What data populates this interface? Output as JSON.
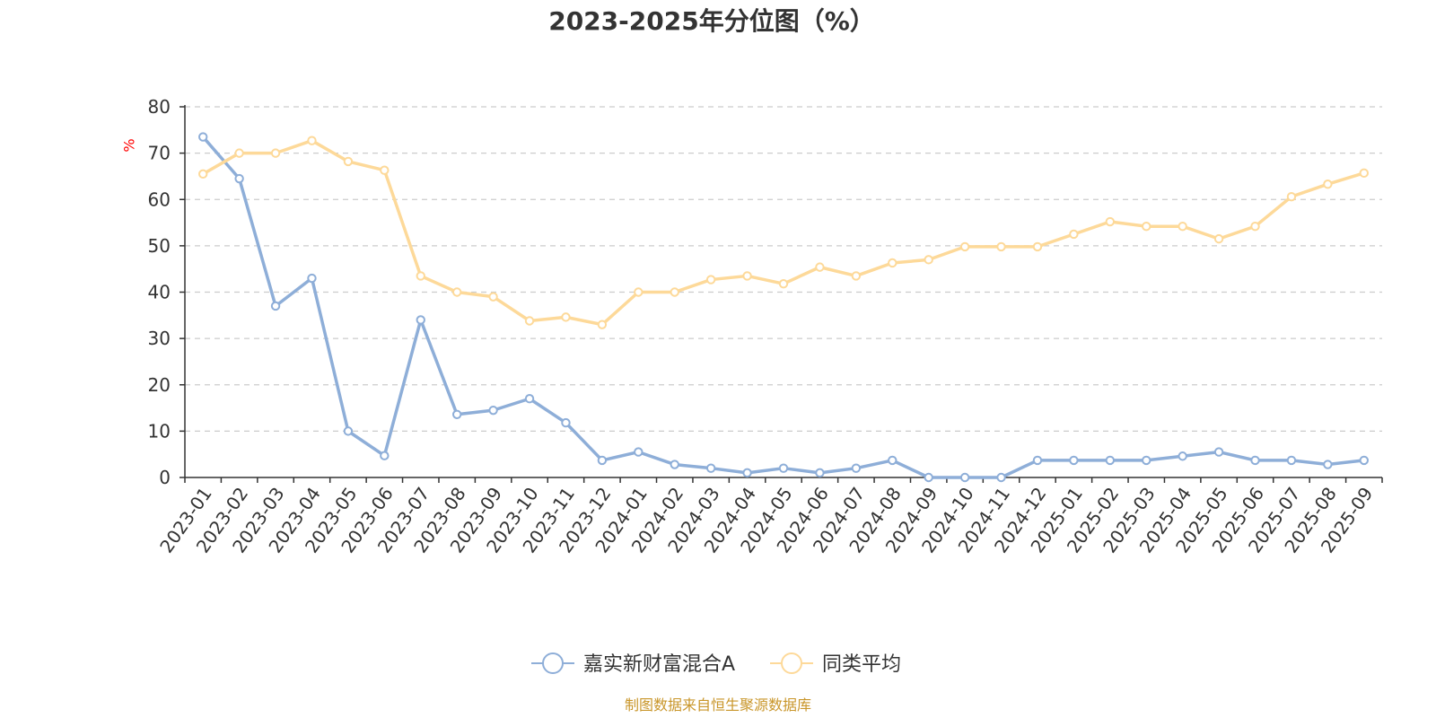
{
  "chart_data": {
    "type": "line",
    "title": "2023-2025年分位图（%）",
    "xlabel": "",
    "ylabel": "%",
    "ylim": [
      0,
      80
    ],
    "yticks": [
      0,
      10,
      20,
      30,
      40,
      50,
      60,
      70,
      80
    ],
    "grid": true,
    "legend_position": "bottom-center",
    "categories": [
      "2023-01",
      "2023-02",
      "2023-03",
      "2023-04",
      "2023-05",
      "2023-06",
      "2023-07",
      "2023-08",
      "2023-09",
      "2023-10",
      "2023-11",
      "2023-12",
      "2024-01",
      "2024-02",
      "2024-03",
      "2024-04",
      "2024-05",
      "2024-06",
      "2024-07",
      "2024-08",
      "2024-09",
      "2024-10",
      "2024-11",
      "2024-12",
      "2025-01",
      "2025-02",
      "2025-03",
      "2025-04",
      "2025-05",
      "2025-06",
      "2025-07",
      "2025-08",
      "2025-09"
    ],
    "series": [
      {
        "name": "嘉实新财富混合A",
        "color": "#8eaed8",
        "values": [
          73.5,
          64.5,
          37,
          43,
          10,
          4.7,
          34,
          13.6,
          14.5,
          17,
          11.8,
          3.7,
          5.5,
          2.8,
          2,
          1,
          2,
          1,
          2,
          3.7,
          0,
          0,
          0,
          3.7,
          3.7,
          3.7,
          3.7,
          4.6,
          5.5,
          3.7,
          3.7,
          2.8,
          3.7
        ]
      },
      {
        "name": "同类平均",
        "color": "#fdd999",
        "values": [
          65.5,
          70,
          70,
          72.7,
          68.2,
          66.3,
          43.5,
          40,
          39,
          33.8,
          34.6,
          33,
          40,
          40,
          42.7,
          43.5,
          41.8,
          45.4,
          43.5,
          46.3,
          47,
          49.8,
          49.8,
          49.8,
          52.5,
          55.2,
          54.2,
          54.2,
          51.5,
          54.2,
          60.6,
          63.3,
          65.7
        ]
      }
    ]
  },
  "source": "制图数据来自恒生聚源数据库"
}
